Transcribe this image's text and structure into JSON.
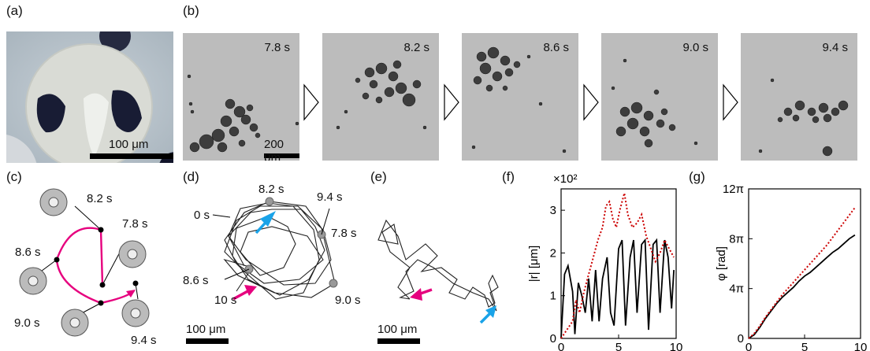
{
  "panels": {
    "a": {
      "label": "(a)",
      "scale": "100 μm"
    },
    "b": {
      "label": "(b)",
      "times": [
        "7.8 s",
        "8.2 s",
        "8.6 s",
        "9.0 s",
        "9.4 s"
      ],
      "scale": "200 μm"
    },
    "c": {
      "label": "(c)",
      "times": [
        "8.2 s",
        "7.8 s",
        "8.6 s",
        "9.0 s",
        "9.4 s"
      ]
    },
    "d": {
      "label": "(d)",
      "times": [
        "8.2 s",
        "9.4 s",
        "0 s",
        "7.8 s",
        "8.6 s",
        "10 s",
        "9.0 s"
      ],
      "scale": "100 μm"
    },
    "e": {
      "label": "(e)",
      "scale": "100 μm"
    },
    "f": {
      "label": "(f)"
    },
    "g": {
      "label": "(g)"
    }
  },
  "chart_data": [
    {
      "type": "line",
      "panel": "f",
      "xlabel": "t [s]",
      "ylabel": "|r| [μm]",
      "multiplier": "×10²",
      "xlim": [
        0,
        10
      ],
      "ylim": [
        0,
        3.5
      ],
      "xticks": [
        "0",
        "5",
        "10"
      ],
      "yticks": [
        "0",
        "1",
        "2",
        "3"
      ],
      "series": [
        {
          "style": "solid",
          "color": "#000000",
          "x": [
            0,
            0.3,
            0.6,
            1.0,
            1.2,
            1.5,
            1.8,
            2.1,
            2.4,
            2.7,
            3.0,
            3.3,
            3.6,
            4.0,
            4.3,
            4.6,
            5.0,
            5.3,
            5.6,
            6.0,
            6.3,
            6.6,
            7.0,
            7.3,
            7.6,
            8.0,
            8.3,
            8.6,
            9.0,
            9.3,
            9.6,
            9.8
          ],
          "y": [
            0,
            1.5,
            1.7,
            1.1,
            0.1,
            1.3,
            1.0,
            0.6,
            1.4,
            0.4,
            1.6,
            0.4,
            1.4,
            1.9,
            0.6,
            0.3,
            2.1,
            2.3,
            0.3,
            1.9,
            2.3,
            0.6,
            2.2,
            2.3,
            0.2,
            2.2,
            2.3,
            0.6,
            2.3,
            1.9,
            0.7,
            1.6
          ]
        },
        {
          "style": "dotted",
          "color": "#cc0000",
          "x": [
            0,
            0.5,
            1.0,
            1.3,
            1.6,
            2.0,
            2.4,
            2.8,
            3.2,
            3.6,
            3.9,
            4.2,
            4.5,
            4.8,
            5.1,
            5.5,
            5.8,
            6.2,
            6.6,
            7.0,
            7.4,
            7.8,
            8.2,
            8.6,
            9.0,
            9.4,
            9.8
          ],
          "y": [
            0,
            0.2,
            0.4,
            0.9,
            0.6,
            1.1,
            1.5,
            1.9,
            2.3,
            2.6,
            3.1,
            3.2,
            2.8,
            2.6,
            3.0,
            3.4,
            2.9,
            2.6,
            2.7,
            2.9,
            2.4,
            2.1,
            1.8,
            2.0,
            2.3,
            2.1,
            1.9
          ]
        }
      ]
    },
    {
      "type": "line",
      "panel": "g",
      "xlabel": "t [s]",
      "ylabel": "φ [rad]",
      "xlim": [
        0,
        10
      ],
      "ylim": [
        0,
        12
      ],
      "xticks": [
        "0",
        "5",
        "10"
      ],
      "yticks": [
        "0",
        "4π",
        "8π",
        "12π"
      ],
      "series": [
        {
          "style": "solid",
          "color": "#000000",
          "x": [
            0,
            0.5,
            1,
            1.5,
            2,
            2.5,
            3,
            3.5,
            4,
            4.5,
            5,
            5.5,
            6,
            6.5,
            7,
            7.5,
            8,
            8.5,
            9,
            9.5
          ],
          "y": [
            0,
            0.3,
            0.9,
            1.6,
            2.2,
            2.8,
            3.3,
            3.7,
            4.1,
            4.6,
            5.0,
            5.3,
            5.7,
            6.1,
            6.5,
            6.9,
            7.2,
            7.6,
            8.0,
            8.3
          ]
        },
        {
          "style": "dotted",
          "color": "#cc0000",
          "x": [
            0,
            0.5,
            1,
            1.5,
            2,
            2.5,
            3,
            3.5,
            4,
            4.5,
            5,
            5.5,
            6,
            6.5,
            7,
            7.5,
            8,
            8.5,
            9,
            9.5
          ],
          "y": [
            0,
            0.4,
            1.0,
            1.7,
            2.3,
            2.9,
            3.5,
            4.0,
            4.5,
            5.0,
            5.5,
            6.0,
            6.5,
            7.0,
            7.5,
            8.1,
            8.7,
            9.3,
            9.9,
            10.5
          ]
        }
      ]
    }
  ]
}
